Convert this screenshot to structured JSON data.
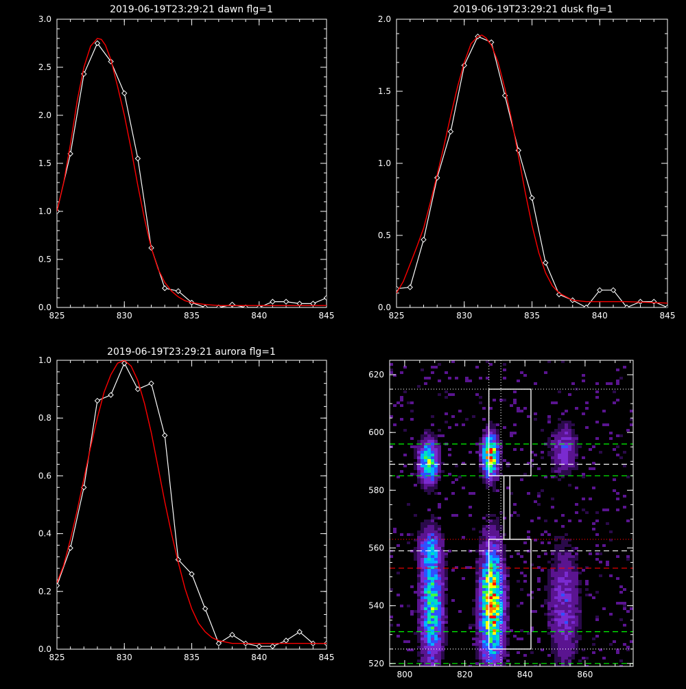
{
  "chart_data": [
    {
      "type": "line",
      "title": "2019-06-19T23:29:21 dawn flg=1",
      "xlim": [
        825,
        845
      ],
      "ylim": [
        0,
        3.0
      ],
      "xticks": [
        825,
        830,
        835,
        840,
        845
      ],
      "yticks": [
        0,
        0.5,
        1.0,
        1.5,
        2.0,
        2.5,
        3.0
      ],
      "xtick_labels": [
        "825",
        "830",
        "835",
        "840",
        "845"
      ],
      "ytick_labels": [
        "0.0",
        "0.5",
        "1.0",
        "1.5",
        "2.0",
        "2.5",
        "3.0"
      ],
      "series": [
        {
          "color": "#ffffff",
          "markers": "diamond",
          "x": [
            825,
            826,
            827,
            828,
            829,
            830,
            831,
            832,
            833,
            834,
            835,
            836,
            837,
            838,
            839,
            840,
            841,
            842,
            843,
            844,
            845
          ],
          "y": [
            1.0,
            1.6,
            2.43,
            2.75,
            2.56,
            2.23,
            1.55,
            0.62,
            0.2,
            0.17,
            0.05,
            0.0,
            0.0,
            0.03,
            0.0,
            0.0,
            0.06,
            0.06,
            0.04,
            0.04,
            0.1
          ]
        },
        {
          "color": "#ff0000",
          "markers": "none",
          "x": [
            825,
            825.5,
            826,
            826.5,
            827,
            827.5,
            828,
            828.3,
            828.6,
            829,
            829.5,
            830,
            830.5,
            831,
            831.5,
            832,
            832.5,
            833,
            833.5,
            834,
            834.5,
            835,
            836,
            837,
            838,
            840,
            842,
            845
          ],
          "y": [
            1.0,
            1.3,
            1.7,
            2.15,
            2.5,
            2.72,
            2.8,
            2.79,
            2.73,
            2.58,
            2.3,
            2.0,
            1.65,
            1.27,
            0.92,
            0.62,
            0.4,
            0.26,
            0.17,
            0.11,
            0.07,
            0.05,
            0.03,
            0.02,
            0.02,
            0.02,
            0.02,
            0.02
          ]
        }
      ]
    },
    {
      "type": "line",
      "title": "2019-06-19T23:29:21 dusk flg=1",
      "xlim": [
        825,
        845
      ],
      "ylim": [
        0,
        2.0
      ],
      "xticks": [
        825,
        830,
        835,
        840,
        845
      ],
      "yticks": [
        0,
        0.5,
        1.0,
        1.5,
        2.0
      ],
      "xtick_labels": [
        "825",
        "830",
        "835",
        "840",
        "845"
      ],
      "ytick_labels": [
        "0.0",
        "0.5",
        "1.0",
        "1.5",
        "2.0"
      ],
      "series": [
        {
          "color": "#ffffff",
          "markers": "diamond",
          "x": [
            825,
            826,
            827,
            828,
            829,
            830,
            831,
            832,
            833,
            834,
            835,
            836,
            837,
            838,
            839,
            840,
            841,
            842,
            843,
            844,
            845
          ],
          "y": [
            0.13,
            0.14,
            0.47,
            0.9,
            1.22,
            1.68,
            1.88,
            1.84,
            1.47,
            1.09,
            0.76,
            0.31,
            0.09,
            0.05,
            0.0,
            0.12,
            0.12,
            0.0,
            0.04,
            0.04,
            0.0
          ]
        },
        {
          "color": "#ff0000",
          "markers": "none",
          "x": [
            825,
            825.5,
            826,
            826.5,
            827,
            827.5,
            828,
            828.5,
            829,
            829.5,
            830,
            830.5,
            831,
            831.3,
            831.6,
            832,
            832.5,
            833,
            833.5,
            834,
            834.5,
            835,
            835.5,
            836,
            836.5,
            837,
            838,
            839,
            840,
            842,
            845
          ],
          "y": [
            0.1,
            0.18,
            0.3,
            0.42,
            0.55,
            0.73,
            0.92,
            1.12,
            1.33,
            1.53,
            1.7,
            1.83,
            1.88,
            1.89,
            1.87,
            1.82,
            1.7,
            1.52,
            1.3,
            1.05,
            0.8,
            0.57,
            0.38,
            0.24,
            0.15,
            0.1,
            0.05,
            0.04,
            0.04,
            0.04,
            0.03
          ]
        }
      ]
    },
    {
      "type": "line",
      "title": "2019-06-19T23:29:21 aurora flg=1",
      "xlim": [
        825,
        845
      ],
      "ylim": [
        0,
        1.0
      ],
      "xticks": [
        825,
        830,
        835,
        840,
        845
      ],
      "yticks": [
        0,
        0.2,
        0.4,
        0.6,
        0.8,
        1.0
      ],
      "xtick_labels": [
        "825",
        "830",
        "835",
        "840",
        "845"
      ],
      "ytick_labels": [
        "0.0",
        "0.2",
        "0.4",
        "0.6",
        "0.8",
        "1.0"
      ],
      "series": [
        {
          "color": "#ffffff",
          "markers": "diamond",
          "x": [
            825,
            826,
            827,
            828,
            829,
            830,
            831,
            832,
            833,
            834,
            835,
            836,
            837,
            838,
            839,
            840,
            841,
            842,
            843,
            844,
            845
          ],
          "y": [
            0.22,
            0.35,
            0.56,
            0.86,
            0.88,
            0.99,
            0.9,
            0.92,
            0.74,
            0.31,
            0.26,
            0.14,
            0.02,
            0.05,
            0.02,
            0.01,
            0.01,
            0.03,
            0.06,
            0.02,
            0.02
          ]
        },
        {
          "color": "#ff0000",
          "markers": "none",
          "x": [
            825,
            825.5,
            826,
            826.5,
            827,
            827.5,
            828,
            828.5,
            829,
            829.5,
            830,
            830.5,
            831,
            831.5,
            832,
            832.5,
            833,
            833.5,
            834,
            834.5,
            835,
            835.5,
            836,
            836.5,
            837,
            838,
            839,
            840,
            842,
            845
          ],
          "y": [
            0.23,
            0.29,
            0.38,
            0.48,
            0.59,
            0.7,
            0.8,
            0.89,
            0.95,
            0.99,
            1.0,
            0.98,
            0.93,
            0.85,
            0.75,
            0.63,
            0.51,
            0.4,
            0.3,
            0.21,
            0.14,
            0.09,
            0.06,
            0.04,
            0.03,
            0.02,
            0.02,
            0.02,
            0.02,
            0.02
          ]
        }
      ]
    },
    {
      "type": "heatmap",
      "title": "",
      "xlim": [
        795,
        876
      ],
      "ylim": [
        519,
        625
      ],
      "xticks": [
        800,
        820,
        840,
        860
      ],
      "yticks": [
        520,
        540,
        560,
        580,
        600,
        620
      ],
      "xtick_labels": [
        "800",
        "820",
        "840",
        "860"
      ],
      "ytick_labels": [
        "520",
        "540",
        "560",
        "580",
        "600",
        "620"
      ],
      "colormap": [
        "#2a0a4a",
        "#5a1490",
        "#7a2ad0",
        "#3050ff",
        "#00b4ff",
        "#00e0c0",
        "#40ff40",
        "#ffff00",
        "#ff8000",
        "#ff0000"
      ],
      "blobs": [
        {
          "x": 808,
          "y": 590,
          "sx": 2.2,
          "sy": 5,
          "amp": 0.7
        },
        {
          "x": 828.5,
          "y": 592,
          "sx": 1.8,
          "sy": 5,
          "amp": 0.95
        },
        {
          "x": 809,
          "y": 540,
          "sx": 2.5,
          "sy": 14,
          "amp": 0.65
        },
        {
          "x": 829,
          "y": 540,
          "sx": 2.6,
          "sy": 14,
          "amp": 0.98
        },
        {
          "x": 853,
          "y": 594,
          "sx": 3,
          "sy": 6,
          "amp": 0.3
        },
        {
          "x": 853,
          "y": 540,
          "sx": 3.5,
          "sy": 14,
          "amp": 0.3
        },
        {
          "x": 808,
          "y": 560,
          "sx": 2.5,
          "sy": 4,
          "amp": 0.3
        }
      ],
      "hlines": [
        {
          "y": 615,
          "color": "#ffffff",
          "style": "dotted"
        },
        {
          "y": 596,
          "color": "#00ff00",
          "style": "dashed"
        },
        {
          "y": 589,
          "color": "#ffffff",
          "style": "dashed"
        },
        {
          "y": 585,
          "color": "#00ff00",
          "style": "dashed"
        },
        {
          "y": 563,
          "color": "#ff0000",
          "style": "dotted"
        },
        {
          "y": 559,
          "color": "#ffffff",
          "style": "dashed"
        },
        {
          "y": 553,
          "color": "#ff0000",
          "style": "dashed"
        },
        {
          "y": 531,
          "color": "#00ff00",
          "style": "dashed"
        },
        {
          "y": 525,
          "color": "#ffffff",
          "style": "dotted"
        },
        {
          "y": 520,
          "color": "#00ff00",
          "style": "dashed"
        }
      ],
      "vlines": [
        {
          "x": 828,
          "color": "#ffffff",
          "style": "dotted"
        },
        {
          "x": 832,
          "color": "#ffffff",
          "style": "dotted"
        }
      ],
      "boxes": [
        {
          "x0": 828,
          "x1": 842,
          "y0": 585,
          "y1": 615
        },
        {
          "x0": 833,
          "x1": 835,
          "y0": 563,
          "y1": 585
        },
        {
          "x0": 828,
          "x1": 842,
          "y0": 525,
          "y1": 563
        }
      ]
    }
  ]
}
